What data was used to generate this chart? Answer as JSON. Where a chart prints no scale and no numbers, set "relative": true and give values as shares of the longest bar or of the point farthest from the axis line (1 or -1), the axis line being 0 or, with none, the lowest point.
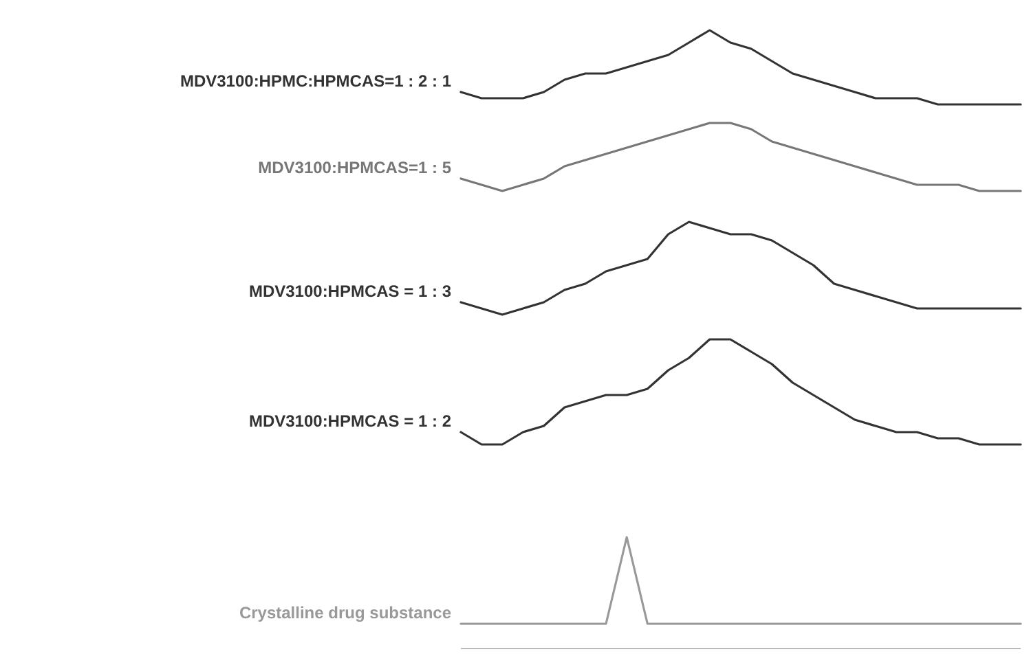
{
  "chart_data": {
    "type": "line",
    "relative": true,
    "categories": [
      null,
      null,
      null,
      null,
      null,
      null,
      null,
      null,
      null,
      null,
      null,
      null,
      null,
      null,
      null,
      null,
      null,
      null,
      null,
      null,
      null,
      null,
      null,
      null,
      null,
      null,
      null,
      null
    ],
    "series": [
      {
        "name": "MDV3100:HPMC:HPMCAS=1 : 2 : 1",
        "color": "#333333",
        "values": [
          0.9,
          0.89,
          0.89,
          0.89,
          0.9,
          0.92,
          0.93,
          0.93,
          0.94,
          0.95,
          0.96,
          0.98,
          1.0,
          0.98,
          0.97,
          0.95,
          0.93,
          0.92,
          0.91,
          0.9,
          0.89,
          0.89,
          0.89,
          0.88,
          0.88,
          0.88,
          0.88,
          0.88
        ]
      },
      {
        "name": "MDV3100:HPMCAS=1 : 5",
        "color": "#777777",
        "values": [
          0.76,
          0.75,
          0.74,
          0.75,
          0.76,
          0.78,
          0.79,
          0.8,
          0.81,
          0.82,
          0.83,
          0.84,
          0.85,
          0.85,
          0.84,
          0.82,
          0.81,
          0.8,
          0.79,
          0.78,
          0.77,
          0.76,
          0.75,
          0.75,
          0.75,
          0.74,
          0.74,
          0.74
        ]
      },
      {
        "name": "MDV3100:HPMCAS = 1 : 3",
        "color": "#333333",
        "values": [
          0.56,
          0.55,
          0.54,
          0.55,
          0.56,
          0.58,
          0.59,
          0.61,
          0.62,
          0.63,
          0.67,
          0.69,
          0.68,
          0.67,
          0.67,
          0.66,
          0.64,
          0.62,
          0.59,
          0.58,
          0.57,
          0.56,
          0.55,
          0.55,
          0.55,
          0.55,
          0.55,
          0.55
        ]
      },
      {
        "name": "MDV3100:HPMCAS = 1 : 2",
        "color": "#333333",
        "values": [
          0.35,
          0.33,
          0.33,
          0.35,
          0.36,
          0.39,
          0.4,
          0.41,
          0.41,
          0.42,
          0.45,
          0.47,
          0.5,
          0.5,
          0.48,
          0.46,
          0.43,
          0.41,
          0.39,
          0.37,
          0.36,
          0.35,
          0.35,
          0.34,
          0.34,
          0.33,
          0.33,
          0.33
        ]
      },
      {
        "name": "Crystalline drug substance",
        "color": "#999999",
        "values": [
          0.04,
          0.04,
          0.04,
          0.04,
          0.04,
          0.04,
          0.04,
          0.04,
          0.18,
          0.04,
          0.04,
          0.04,
          0.04,
          0.04,
          0.04,
          0.04,
          0.04,
          0.04,
          0.04,
          0.04,
          0.04,
          0.04,
          0.04,
          0.04,
          0.04,
          0.04,
          0.04,
          0.04
        ]
      }
    ]
  }
}
